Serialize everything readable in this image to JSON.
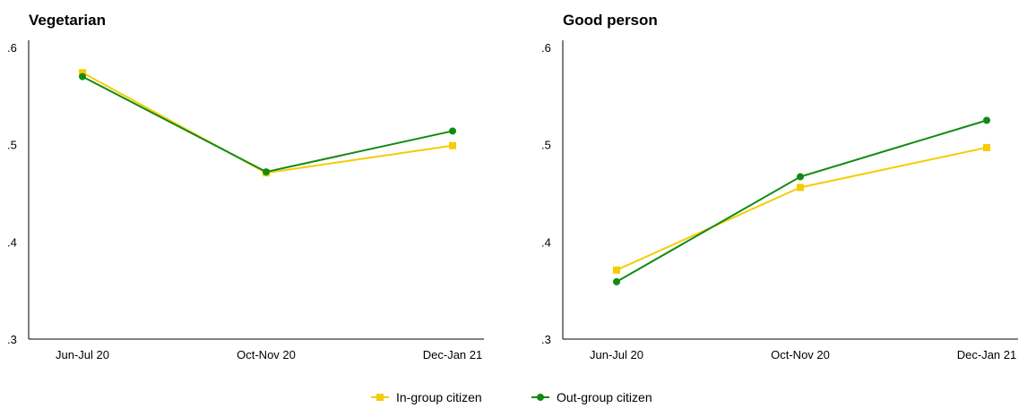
{
  "colors": {
    "in_group": "#f5cc00",
    "out_group": "#128a12"
  },
  "legend": {
    "items": [
      {
        "label": "In-group citizen",
        "marker": "square",
        "color": "#f5cc00"
      },
      {
        "label": "Out-group citizen",
        "marker": "circle",
        "color": "#128a12"
      }
    ]
  },
  "chart_data": [
    {
      "type": "line",
      "title": "Vegetarian",
      "xlabel": "",
      "ylabel": "",
      "categories": [
        "Jun-Jul 20",
        "Oct-Nov 20",
        "Dec-Jan 21"
      ],
      "ylim": [
        0.3,
        0.6
      ],
      "yticks": [
        ".3",
        ".4",
        ".5",
        ".6"
      ],
      "grid": false,
      "legend_position": "bottom-center",
      "series": [
        {
          "name": "In-group citizen",
          "marker": "square",
          "values": [
            0.574,
            0.471,
            0.499
          ]
        },
        {
          "name": "Out-group citizen",
          "marker": "circle",
          "values": [
            0.57,
            0.472,
            0.514
          ]
        }
      ]
    },
    {
      "type": "line",
      "title": "Good person",
      "xlabel": "",
      "ylabel": "",
      "categories": [
        "Jun-Jul 20",
        "Oct-Nov 20",
        "Dec-Jan 21"
      ],
      "ylim": [
        0.3,
        0.6
      ],
      "yticks": [
        ".3",
        ".4",
        ".5",
        ".6"
      ],
      "grid": false,
      "legend_position": "bottom-center",
      "series": [
        {
          "name": "In-group citizen",
          "marker": "square",
          "values": [
            0.371,
            0.456,
            0.497
          ]
        },
        {
          "name": "Out-group citizen",
          "marker": "circle",
          "values": [
            0.359,
            0.467,
            0.525
          ]
        }
      ]
    }
  ]
}
